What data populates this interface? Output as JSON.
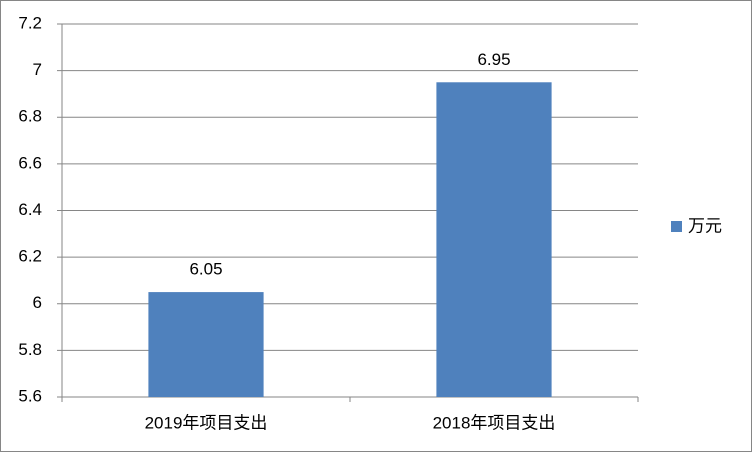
{
  "chart_data": {
    "type": "bar",
    "categories": [
      "2019年项目支出",
      "2018年项目支出"
    ],
    "series": [
      {
        "name": "万元",
        "color": "#4f81bd",
        "values": [
          6.05,
          6.95
        ]
      }
    ],
    "ylim": [
      5.6,
      7.2
    ],
    "yticks": [
      5.6,
      5.8,
      6,
      6.2,
      6.4,
      6.6,
      6.8,
      7,
      7.2
    ],
    "grid": true,
    "legend": "right"
  }
}
